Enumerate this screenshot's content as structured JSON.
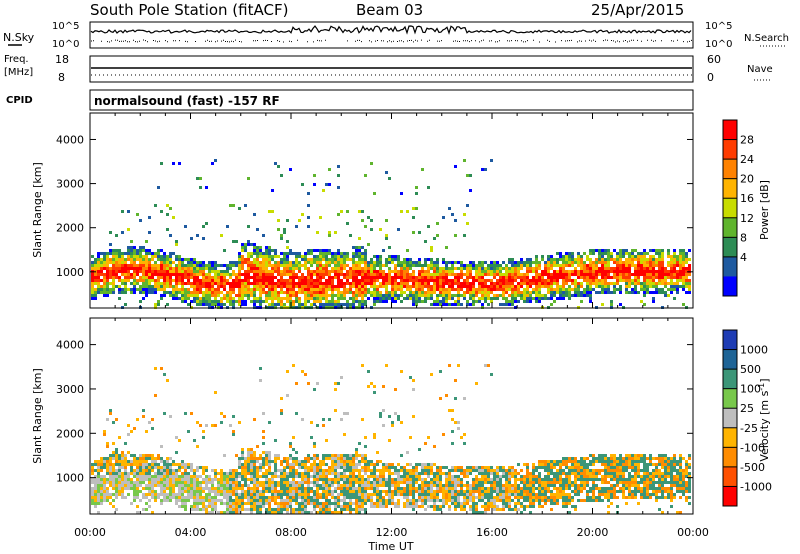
{
  "header": {
    "station": "South Pole Station (fitACF)",
    "beam": "Beam 03",
    "date": "25/Apr/2015"
  },
  "noise_panel": {
    "left_label": "N.Sky",
    "right_label": "N.Search",
    "left_ticks": [
      "10^5",
      "10^0"
    ],
    "right_ticks": [
      "10^5",
      "10^0"
    ]
  },
  "freq_panel": {
    "left_label_1": "Freq.",
    "left_label_2": "[MHz]",
    "right_label": "Nave",
    "left_ticks": [
      "18",
      "8"
    ],
    "right_ticks": [
      "60",
      "0"
    ]
  },
  "cpid": {
    "label": "CPID",
    "program": "normalsound (fast) -157 RF"
  },
  "power_colorbar": {
    "title": "Power [dB]",
    "ticks": [
      "28",
      "24",
      "20",
      "16",
      "12",
      "8",
      "4"
    ],
    "colors": [
      "#ff0000",
      "#ff3c00",
      "#ff8200",
      "#ffb400",
      "#c8dc00",
      "#5fb42d",
      "#2d8c55",
      "#1e5aa0",
      "#0000ff"
    ]
  },
  "velocity_colorbar": {
    "title": "Velocity [m s",
    "title_sup": "-1",
    "title_end": "]",
    "ticks": [
      "1000",
      "500",
      "100",
      "25",
      "-25",
      "-100",
      "-500",
      "-1000"
    ],
    "colors": [
      "#1e3cb4",
      "#1e6496",
      "#3c9678",
      "#78c84b",
      "#bebebe",
      "#ffb400",
      "#ff8c00",
      "#ff5000",
      "#ff0000"
    ]
  },
  "chart_data": [
    {
      "type": "heatmap",
      "panel": "power",
      "ylabel": "Slant Range [km]",
      "xlabel": "Time UT",
      "xlim": [
        0,
        24
      ],
      "ylim": [
        180,
        4600
      ],
      "xticks": [
        "00:00",
        "04:00",
        "08:00",
        "12:00",
        "16:00",
        "20:00",
        "00:00"
      ],
      "yticks": [
        1000,
        2000,
        3000,
        4000
      ],
      "clim_db": [
        0,
        32
      ]
    },
    {
      "type": "heatmap",
      "panel": "velocity",
      "ylabel": "Slant Range [km]",
      "xlabel": "Time UT",
      "xlim": [
        0,
        24
      ],
      "ylim": [
        180,
        4600
      ],
      "xticks": [
        "00:00",
        "04:00",
        "08:00",
        "12:00",
        "16:00",
        "20:00",
        "00:00"
      ],
      "yticks": [
        1000,
        2000,
        3000,
        4000
      ],
      "clim_ms": [
        -1000,
        1000
      ]
    }
  ]
}
